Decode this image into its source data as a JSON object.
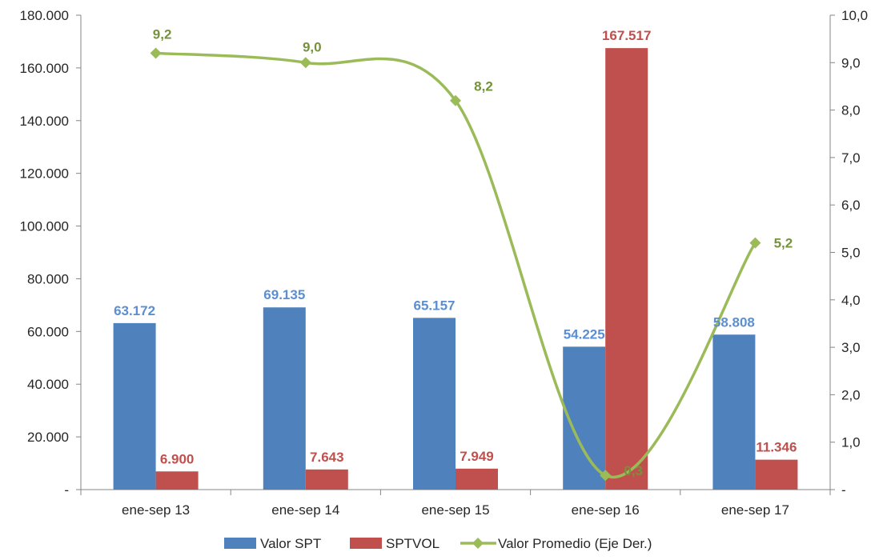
{
  "colors": {
    "spt": "#4F81BD",
    "sptvol": "#C0504D",
    "avg": "#9BBB59",
    "spt_label": "#5B8FD1",
    "avg_label": "#76923C",
    "axis": "#868686"
  },
  "chart_data": {
    "type": "bar",
    "categories": [
      "ene-sep 13",
      "ene-sep 14",
      "ene-sep 15",
      "ene-sep 16",
      "ene-sep 17"
    ],
    "series": [
      {
        "name": "Valor SPT",
        "type": "bar",
        "axis": "left",
        "values": [
          63172,
          69135,
          65157,
          54225,
          58808
        ],
        "labels": [
          "63.172",
          "69.135",
          "65.157",
          "54.225",
          "58.808"
        ]
      },
      {
        "name": "SPTVOL",
        "type": "bar",
        "axis": "left",
        "values": [
          6900,
          7643,
          7949,
          167517,
          11346
        ],
        "labels": [
          "6.900",
          "7.643",
          "7.949",
          "167.517",
          "11.346"
        ]
      },
      {
        "name": "Valor Promedio (Eje Der.)",
        "type": "line",
        "axis": "right",
        "smooth": true,
        "marker": "diamond",
        "values": [
          9.2,
          9.0,
          8.2,
          0.3,
          5.2
        ],
        "labels": [
          "9,2",
          "9,0",
          "8,2",
          "0,3",
          "5,2"
        ]
      }
    ],
    "ylim_left": [
      0,
      180000
    ],
    "ylim_right": [
      0,
      10
    ],
    "yticks_left": [
      "-",
      "20.000",
      "40.000",
      "60.000",
      "80.000",
      "100.000",
      "120.000",
      "140.000",
      "160.000",
      "180.000"
    ],
    "yticks_right": [
      "-",
      "1,0",
      "2,0",
      "3,0",
      "4,0",
      "5,0",
      "6,0",
      "7,0",
      "8,0",
      "9,0",
      "10,0"
    ],
    "grid": false,
    "legend_position": "bottom"
  }
}
